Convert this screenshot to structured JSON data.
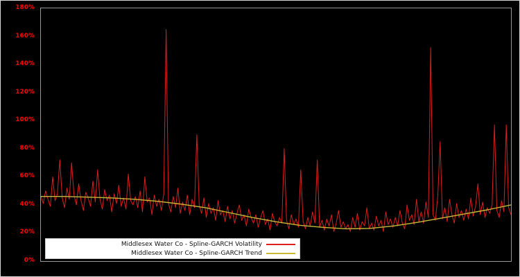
{
  "chart_data": {
    "type": "line",
    "title": "",
    "xlabel": "",
    "ylabel": "",
    "ylim": [
      0,
      180
    ],
    "yticks": [
      0,
      20,
      40,
      60,
      80,
      100,
      120,
      140,
      160,
      180
    ],
    "ytick_labels": [
      "0%",
      "20%",
      "40%",
      "60%",
      "80%",
      "100%",
      "120%",
      "140%",
      "160%",
      "180%"
    ],
    "grid": false,
    "background_color": "#000000",
    "tick_label_color": "#ff0000",
    "axis_frame_color": "#9a9a9a",
    "legend_position": "bottom-left",
    "legend_background": "#ffffff",
    "series": [
      {
        "name": "Middlesex Water Co - Spline-GARCH Volatility",
        "color": "#dc1e1e",
        "stroke_width": 1,
        "values": [
          46,
          41,
          50,
          44,
          39,
          60,
          43,
          48,
          72,
          45,
          38,
          52,
          44,
          70,
          47,
          40,
          55,
          43,
          36,
          49,
          45,
          39,
          57,
          42,
          65,
          44,
          37,
          51,
          43,
          47,
          35,
          48,
          41,
          54,
          39,
          45,
          37,
          62,
          43,
          40,
          46,
          38,
          50,
          35,
          60,
          42,
          45,
          33,
          47,
          39,
          44,
          36,
          48,
          165,
          41,
          35,
          46,
          38,
          52,
          34,
          42,
          36,
          47,
          33,
          44,
          38,
          90,
          40,
          34,
          45,
          31,
          41,
          34,
          38,
          29,
          43,
          33,
          36,
          28,
          39,
          30,
          36,
          27,
          34,
          40,
          29,
          33,
          25,
          37,
          31,
          27,
          33,
          24,
          31,
          36,
          26,
          30,
          22,
          34,
          28,
          25,
          31,
          27,
          80,
          29,
          23,
          33,
          26,
          30,
          24,
          65,
          28,
          23,
          31,
          25,
          35,
          27,
          72,
          24,
          29,
          22,
          30,
          25,
          33,
          21,
          27,
          36,
          24,
          28,
          23,
          26,
          21,
          31,
          24,
          34,
          22,
          28,
          25,
          38,
          23,
          27,
          22,
          32,
          25,
          29,
          21,
          35,
          26,
          30,
          24,
          31,
          25,
          36,
          27,
          23,
          40,
          29,
          33,
          26,
          44,
          28,
          35,
          27,
          42,
          31,
          152,
          33,
          29,
          46,
          85,
          30,
          38,
          28,
          44,
          33,
          27,
          41,
          31,
          36,
          29,
          37,
          30,
          45,
          32,
          39,
          55,
          33,
          42,
          31,
          38,
          34,
          40,
          97,
          36,
          31,
          43,
          35,
          97,
          38,
          33
        ]
      },
      {
        "name": "Middlesex Water Co - Spline-GARCH Trend",
        "color": "#c9b938",
        "stroke_width": 1.4,
        "values": [
          46,
          46,
          45.5,
          45,
          44,
          42.5,
          40.5,
          38,
          34.5,
          31,
          28,
          25.5,
          24,
          23,
          23.3,
          25,
          27.5,
          30.5,
          33.5,
          36.5,
          40
        ]
      }
    ]
  }
}
